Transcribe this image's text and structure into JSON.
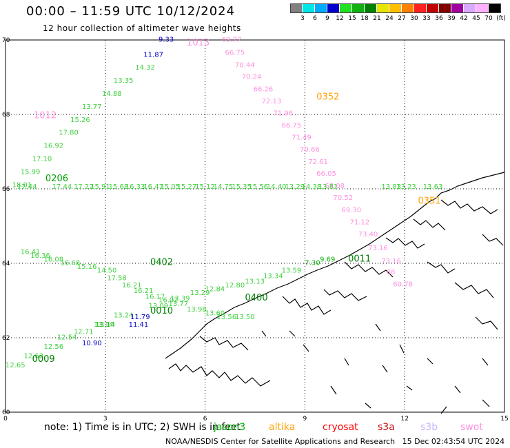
{
  "title": "00:00 – 11:59 UTC 10/12/2024",
  "subtitle": "12 hour collection of altimeter wave heights",
  "legend": {
    "colors": [
      "#808080",
      "#00e6e6",
      "#00aaff",
      "#0000cc",
      "#20e020",
      "#10b010",
      "#008000",
      "#e6e600",
      "#ffbf00",
      "#ff8000",
      "#ff2020",
      "#c00000",
      "#800000",
      "#a000a0",
      "#d9a8ff",
      "#ffb0ff",
      "#000000"
    ],
    "labels": [
      "3",
      "6",
      "9",
      "12",
      "15",
      "18",
      "21",
      "24",
      "27",
      "30",
      "33",
      "36",
      "39",
      "42",
      "45",
      "70",
      "(ft)"
    ]
  },
  "note": "note: 1) Time is in UTC; 2) SWH is in feet",
  "satellites": [
    {
      "name": "jason3",
      "color": "#00b000"
    },
    {
      "name": "altika",
      "color": "#ffa000"
    },
    {
      "name": "cryosat",
      "color": "#ff0000"
    },
    {
      "name": "s3a",
      "color": "#c01010"
    },
    {
      "name": "s3b",
      "color": "#c8b4ff"
    },
    {
      "name": "swot",
      "color": "#ff90e0"
    }
  ],
  "footer": "NOAA/NESDIS Center for Satellite Applications and Research   15 Dec 02:43:54 UTC 2024",
  "chart_data": {
    "type": "scatter",
    "xlim": [
      0,
      15
    ],
    "ylim": [
      60,
      70
    ],
    "x_ticks": [
      "0",
      "3",
      "6",
      "9",
      "12",
      "15"
    ],
    "y_ticks": [
      "60",
      "62",
      "64",
      "66",
      "68",
      "70"
    ],
    "grid": true,
    "times": [
      {
        "text": "1013",
        "x": 5.45,
        "y": 69.85,
        "color": "#ff90e0"
      },
      {
        "text": "1012",
        "x": 0.85,
        "y": 67.9,
        "color": "#ff90e0"
      },
      {
        "text": "0352",
        "x": 9.35,
        "y": 68.4,
        "color": "#ffa000"
      },
      {
        "text": "0206",
        "x": 1.2,
        "y": 66.2,
        "color": "#00a000"
      },
      {
        "text": "0402",
        "x": 4.35,
        "y": 63.95,
        "color": "#008000"
      },
      {
        "text": "0011",
        "x": 10.3,
        "y": 64.05,
        "color": "#008000"
      },
      {
        "text": "0010",
        "x": 4.35,
        "y": 62.65,
        "color": "#008000"
      },
      {
        "text": "0009",
        "x": 0.8,
        "y": 61.35,
        "color": "#008000"
      },
      {
        "text": "0400",
        "x": 7.2,
        "y": 63.0,
        "color": "#008000"
      },
      {
        "text": "0351",
        "x": 12.4,
        "y": 65.6,
        "color": "#ffa000"
      }
    ],
    "series": [
      {
        "name": "swot",
        "color": "#ff90e0",
        "points": [
          {
            "x": 6.5,
            "y": 69.95,
            "v": "69.77"
          },
          {
            "x": 6.6,
            "y": 69.6,
            "v": "66.75"
          },
          {
            "x": 6.9,
            "y": 69.27,
            "v": "70.44"
          },
          {
            "x": 7.1,
            "y": 68.95,
            "v": "70.24"
          },
          {
            "x": 7.45,
            "y": 68.62,
            "v": "66.26"
          },
          {
            "x": 7.7,
            "y": 68.3,
            "v": "72.13"
          },
          {
            "x": 8.05,
            "y": 67.97,
            "v": "71.96"
          },
          {
            "x": 8.3,
            "y": 67.65,
            "v": "66.75"
          },
          {
            "x": 8.6,
            "y": 67.32,
            "v": "71.49"
          },
          {
            "x": 8.85,
            "y": 67.0,
            "v": "70.66"
          },
          {
            "x": 9.1,
            "y": 66.67,
            "v": "72.61"
          },
          {
            "x": 9.35,
            "y": 66.35,
            "v": "66.05"
          },
          {
            "x": 9.6,
            "y": 66.02,
            "v": "68.08"
          },
          {
            "x": 9.85,
            "y": 65.7,
            "v": "70.52"
          },
          {
            "x": 10.1,
            "y": 65.37,
            "v": "69.30"
          },
          {
            "x": 10.35,
            "y": 65.05,
            "v": "71.12"
          },
          {
            "x": 10.6,
            "y": 64.72,
            "v": "73.40"
          },
          {
            "x": 10.9,
            "y": 64.35,
            "v": "73.16"
          },
          {
            "x": 11.3,
            "y": 64.0,
            "v": "73.16"
          },
          {
            "x": 11.45,
            "y": 63.7,
            "v": "88"
          },
          {
            "x": 11.65,
            "y": 63.38,
            "v": "60.78"
          }
        ]
      },
      {
        "name": "s3b",
        "color": "#0000cc",
        "points": [
          {
            "x": 4.6,
            "y": 69.95,
            "v": "9.33"
          },
          {
            "x": 4.15,
            "y": 69.55,
            "v": "11.87"
          }
        ]
      },
      {
        "name": "track-upper",
        "color": "#40d040",
        "points": [
          {
            "x": 3.9,
            "y": 69.2,
            "v": "14.32"
          },
          {
            "x": 3.25,
            "y": 68.85,
            "v": "13.35"
          },
          {
            "x": 2.9,
            "y": 68.5,
            "v": "14.88"
          },
          {
            "x": 2.3,
            "y": 68.15,
            "v": "13.77"
          },
          {
            "x": 1.95,
            "y": 67.8,
            "v": "15.26"
          },
          {
            "x": 1.6,
            "y": 67.45,
            "v": "17.80"
          },
          {
            "x": 1.15,
            "y": 67.1,
            "v": "16.92"
          },
          {
            "x": 0.8,
            "y": 66.75,
            "v": "17.10"
          },
          {
            "x": 0.45,
            "y": 66.4,
            "v": "15.99"
          },
          {
            "x": 0.2,
            "y": 66.05,
            "v": "18.01"
          }
        ]
      },
      {
        "name": "track-66",
        "color": "#40d040",
        "points": [
          {
            "x": 0.35,
            "y": 66.0,
            "v": "17.44"
          },
          {
            "x": 1.4,
            "y": 66.0,
            "v": "17.44"
          },
          {
            "x": 2.05,
            "y": 66.0,
            "v": "17.22"
          },
          {
            "x": 2.55,
            "y": 66.0,
            "v": "15.91"
          },
          {
            "x": 3.1,
            "y": 66.0,
            "v": "15.68"
          },
          {
            "x": 3.6,
            "y": 66.0,
            "v": "16.33"
          },
          {
            "x": 4.15,
            "y": 66.0,
            "v": "16.47"
          },
          {
            "x": 4.65,
            "y": 66.0,
            "v": "15.05"
          },
          {
            "x": 5.15,
            "y": 66.0,
            "v": "15.27"
          },
          {
            "x": 5.7,
            "y": 66.0,
            "v": "15.12"
          },
          {
            "x": 6.25,
            "y": 66.0,
            "v": "14.75"
          },
          {
            "x": 6.8,
            "y": 66.0,
            "v": "15.35"
          },
          {
            "x": 7.3,
            "y": 66.0,
            "v": "15.56"
          },
          {
            "x": 7.85,
            "y": 66.0,
            "v": "14.40"
          },
          {
            "x": 8.4,
            "y": 66.0,
            "v": "13.29"
          },
          {
            "x": 8.9,
            "y": 66.0,
            "v": "14.38"
          },
          {
            "x": 9.4,
            "y": 66.0,
            "v": "13.81"
          },
          {
            "x": 11.3,
            "y": 66.0,
            "v": "13.83"
          },
          {
            "x": 11.75,
            "y": 66.0,
            "v": "13.23"
          },
          {
            "x": 12.55,
            "y": 66.0,
            "v": "13.63"
          }
        ]
      },
      {
        "name": "track-lower1",
        "color": "#40d040",
        "points": [
          {
            "x": 0.45,
            "y": 64.25,
            "v": "16.41"
          },
          {
            "x": 0.75,
            "y": 64.15,
            "v": "16.36"
          },
          {
            "x": 1.15,
            "y": 64.05,
            "v": "16.08"
          },
          {
            "x": 1.65,
            "y": 63.95,
            "v": "16.68"
          },
          {
            "x": 2.15,
            "y": 63.85,
            "v": "15.16"
          },
          {
            "x": 2.75,
            "y": 63.75,
            "v": "14.50"
          },
          {
            "x": 3.05,
            "y": 63.55,
            "v": "17.58"
          },
          {
            "x": 3.5,
            "y": 63.35,
            "v": "16.21"
          },
          {
            "x": 3.85,
            "y": 63.2,
            "v": "16.21"
          },
          {
            "x": 4.2,
            "y": 63.05,
            "v": "16.17"
          },
          {
            "x": 4.6,
            "y": 62.95,
            "v": "16.02"
          },
          {
            "x": 4.9,
            "y": 62.85,
            "v": "13.77"
          },
          {
            "x": 5.45,
            "y": 62.7,
            "v": "13.98"
          },
          {
            "x": 6.0,
            "y": 62.6,
            "v": "13.60"
          },
          {
            "x": 6.35,
            "y": 62.5,
            "v": "13.56"
          },
          {
            "x": 6.9,
            "y": 62.5,
            "v": "13.50"
          }
        ]
      },
      {
        "name": "track-lower2",
        "color": "#40d040",
        "points": [
          {
            "x": 0.0,
            "y": 61.2,
            "v": "12.65"
          },
          {
            "x": 0.55,
            "y": 61.45,
            "v": "12.62"
          },
          {
            "x": 1.15,
            "y": 61.7,
            "v": "12.56"
          },
          {
            "x": 1.55,
            "y": 61.95,
            "v": "12.54"
          },
          {
            "x": 2.05,
            "y": 62.1,
            "v": "12.71"
          },
          {
            "x": 2.65,
            "y": 62.3,
            "v": "13.14"
          },
          {
            "x": 3.25,
            "y": 62.55,
            "v": "13.24"
          },
          {
            "x": 4.3,
            "y": 62.8,
            "v": "13.09"
          },
          {
            "x": 4.95,
            "y": 63.0,
            "v": "13.39"
          },
          {
            "x": 5.55,
            "y": 63.15,
            "v": "13.29"
          },
          {
            "x": 6.0,
            "y": 63.25,
            "v": "12.84"
          },
          {
            "x": 6.6,
            "y": 63.35,
            "v": "12.80"
          },
          {
            "x": 7.2,
            "y": 63.45,
            "v": "13.13"
          },
          {
            "x": 7.75,
            "y": 63.6,
            "v": "13.34"
          },
          {
            "x": 8.3,
            "y": 63.75,
            "v": "13.59"
          }
        ]
      },
      {
        "name": "track-lower2-blue",
        "color": "#0000cc",
        "points": [
          {
            "x": 2.3,
            "y": 61.8,
            "v": "10.90"
          },
          {
            "x": 3.7,
            "y": 62.3,
            "v": "11.41"
          },
          {
            "x": 3.75,
            "y": 62.5,
            "v": "11.79"
          }
        ]
      },
      {
        "name": "track-lower2-green",
        "color": "#10b010",
        "points": [
          {
            "x": 2.7,
            "y": 62.3,
            "v": "13.14"
          },
          {
            "x": 9.0,
            "y": 63.95,
            "v": "7.30"
          },
          {
            "x": 9.45,
            "y": 64.05,
            "v": "9.69"
          }
        ]
      }
    ]
  }
}
